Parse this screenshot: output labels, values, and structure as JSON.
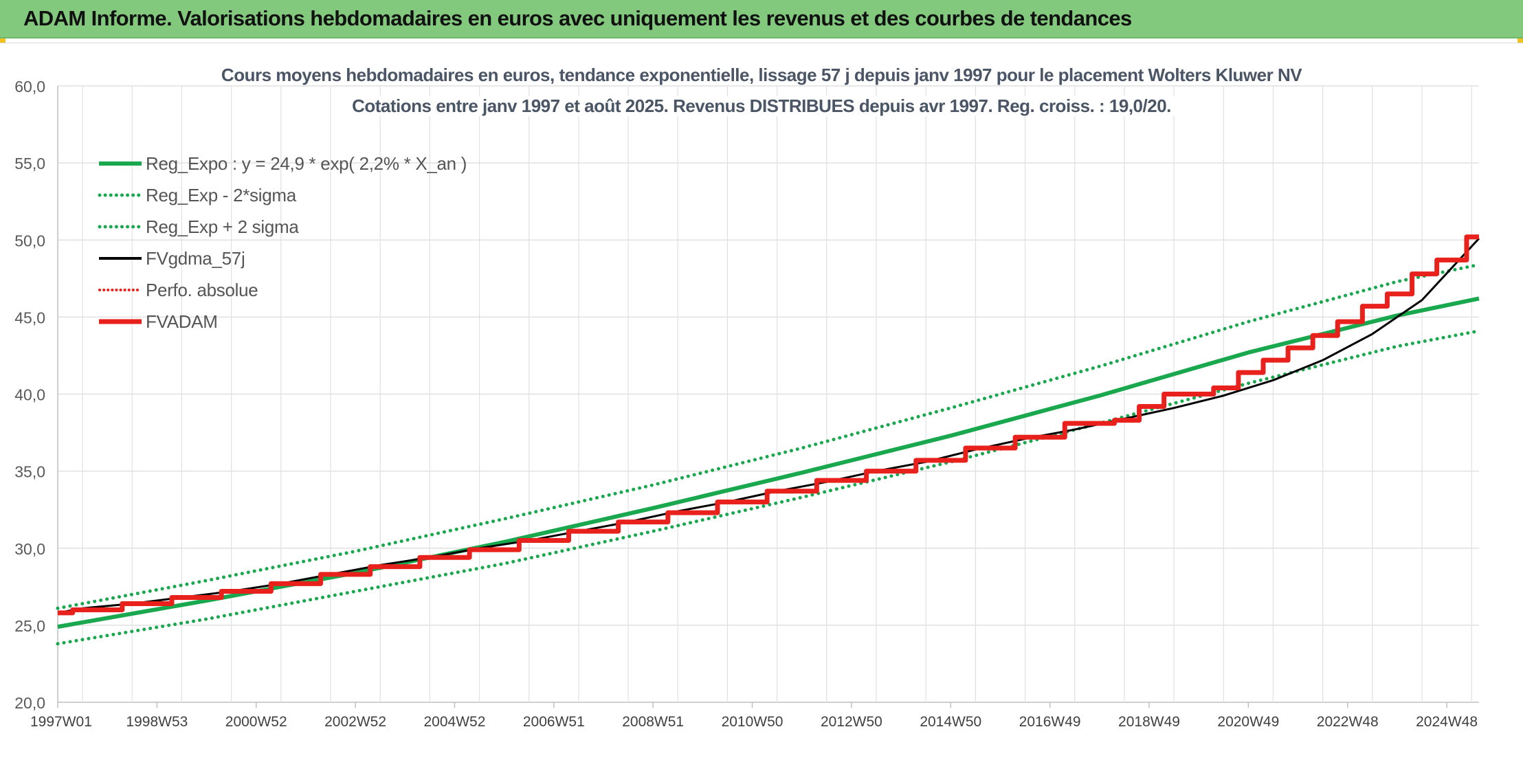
{
  "banner": {
    "title": "ADAM Informe. Valorisations hebdomadaires en euros avec uniquement les revenus et des courbes de tendances"
  },
  "colors": {
    "banner_bg": "#82c97d",
    "reg_expo": "#1aa84f",
    "sigma": "#1aa84f",
    "fvgdma": "#000000",
    "perfo": "#e8211d",
    "fvadam": "#e8211d",
    "grid": "#e0e0e0",
    "accent": "#f2c21c"
  },
  "chart_data": {
    "type": "line",
    "title": "Cours moyens hebdomadaires en euros, tendance exponentielle, lissage 57 j depuis janv 1997 pour le placement Wolters Kluwer NV",
    "subtitle": "Cotations entre janv 1997 et août 2025. Revenus DISTRIBUES depuis avr 1997. Reg. croiss. : 19,0/20.",
    "xlabel": "",
    "ylabel": "",
    "ylim": [
      20,
      60
    ],
    "yticks": [
      "20,0",
      "25,0",
      "30,0",
      "35,0",
      "40,0",
      "45,0",
      "50,0",
      "55,0",
      "60,0"
    ],
    "xlim": [
      1997.0,
      2025.65
    ],
    "xtick_labels": [
      "1997W01",
      "1998W53",
      "2000W52",
      "2002W52",
      "2004W52",
      "2006W51",
      "2008W51",
      "2010W50",
      "2012W50",
      "2014W50",
      "2016W49",
      "2018W49",
      "2020W49",
      "2022W48",
      "2024W48"
    ],
    "xtick_years": [
      1997.0,
      1999.0,
      2001.0,
      2003.0,
      2005.0,
      2007.0,
      2009.0,
      2011.0,
      2013.0,
      2015.0,
      2017.0,
      2019.0,
      2021.0,
      2023.0,
      2025.0
    ],
    "grid": true,
    "legend_position": "top-left",
    "series": [
      {
        "name": "Reg_Expo : y = 24,9 * exp( 2,2% *  X_an )",
        "style": "solid-thick",
        "color": "#1aa84f",
        "x": [
          1997.0,
          2000.0,
          2003.0,
          2006.0,
          2009.0,
          2012.0,
          2015.0,
          2018.0,
          2021.0,
          2024.0,
          2025.65
        ],
        "y": [
          24.9,
          26.6,
          28.4,
          30.4,
          32.6,
          34.9,
          37.3,
          39.9,
          42.7,
          45.1,
          46.2
        ]
      },
      {
        "name": "Reg_Exp - 2*sigma",
        "style": "dotted",
        "color": "#1aa84f",
        "x": [
          1997.0,
          2000.0,
          2003.0,
          2006.0,
          2009.0,
          2012.0,
          2015.0,
          2018.0,
          2021.0,
          2024.0,
          2025.65
        ],
        "y": [
          23.8,
          25.4,
          27.2,
          29.0,
          31.1,
          33.3,
          35.6,
          38.1,
          40.7,
          43.1,
          44.1
        ]
      },
      {
        "name": "Reg_Exp + 2 sigma",
        "style": "dotted",
        "color": "#1aa84f",
        "x": [
          1997.0,
          2000.0,
          2003.0,
          2006.0,
          2009.0,
          2012.0,
          2015.0,
          2018.0,
          2021.0,
          2024.0,
          2025.65
        ],
        "y": [
          26.1,
          27.9,
          29.8,
          31.9,
          34.1,
          36.5,
          39.1,
          41.8,
          44.7,
          47.3,
          48.4
        ]
      },
      {
        "name": "FVgdma_57j",
        "style": "solid",
        "color": "#000000",
        "x": [
          1997.0,
          1997.5,
          1998.5,
          1999.5,
          2000.5,
          2001.5,
          2002.5,
          2003.5,
          2004.5,
          2005.5,
          2006.5,
          2007.5,
          2008.5,
          2009.5,
          2010.5,
          2011.5,
          2012.5,
          2013.5,
          2014.5,
          2015.5,
          2016.5,
          2017.5,
          2018.5,
          2019.5,
          2020.5,
          2021.5,
          2022.5,
          2023.5,
          2024.5,
          2025.65
        ],
        "y": [
          25.8,
          26.1,
          26.4,
          26.8,
          27.2,
          27.7,
          28.3,
          28.9,
          29.4,
          30.0,
          30.5,
          31.1,
          31.7,
          32.4,
          33.0,
          33.7,
          34.3,
          35.0,
          35.6,
          36.4,
          37.1,
          37.7,
          38.4,
          39.1,
          39.9,
          40.9,
          42.2,
          43.9,
          46.1,
          50.1
        ]
      },
      {
        "name": "Perfo. absolue",
        "style": "dotted",
        "color": "#e8211d",
        "x": [],
        "y": []
      },
      {
        "name": "FVADAM",
        "style": "step-thick",
        "color": "#e8211d",
        "x": [
          1997.0,
          1997.3,
          1998.3,
          1999.3,
          2000.3,
          2001.3,
          2002.3,
          2003.3,
          2004.3,
          2005.3,
          2006.3,
          2007.3,
          2008.3,
          2009.3,
          2010.3,
          2011.3,
          2012.3,
          2013.3,
          2014.3,
          2015.3,
          2016.3,
          2017.3,
          2018.3,
          2018.8,
          2019.3,
          2020.3,
          2020.8,
          2021.3,
          2021.8,
          2022.3,
          2022.8,
          2023.3,
          2023.8,
          2024.3,
          2024.8,
          2025.4
        ],
        "y": [
          25.8,
          26.0,
          26.4,
          26.8,
          27.2,
          27.7,
          28.3,
          28.8,
          29.4,
          29.9,
          30.5,
          31.1,
          31.7,
          32.3,
          33.0,
          33.7,
          34.4,
          35.0,
          35.7,
          36.5,
          37.2,
          38.1,
          38.3,
          39.2,
          40.0,
          40.4,
          41.4,
          42.2,
          43.0,
          43.8,
          44.7,
          45.7,
          46.5,
          47.8,
          48.7,
          50.2
        ]
      }
    ]
  }
}
